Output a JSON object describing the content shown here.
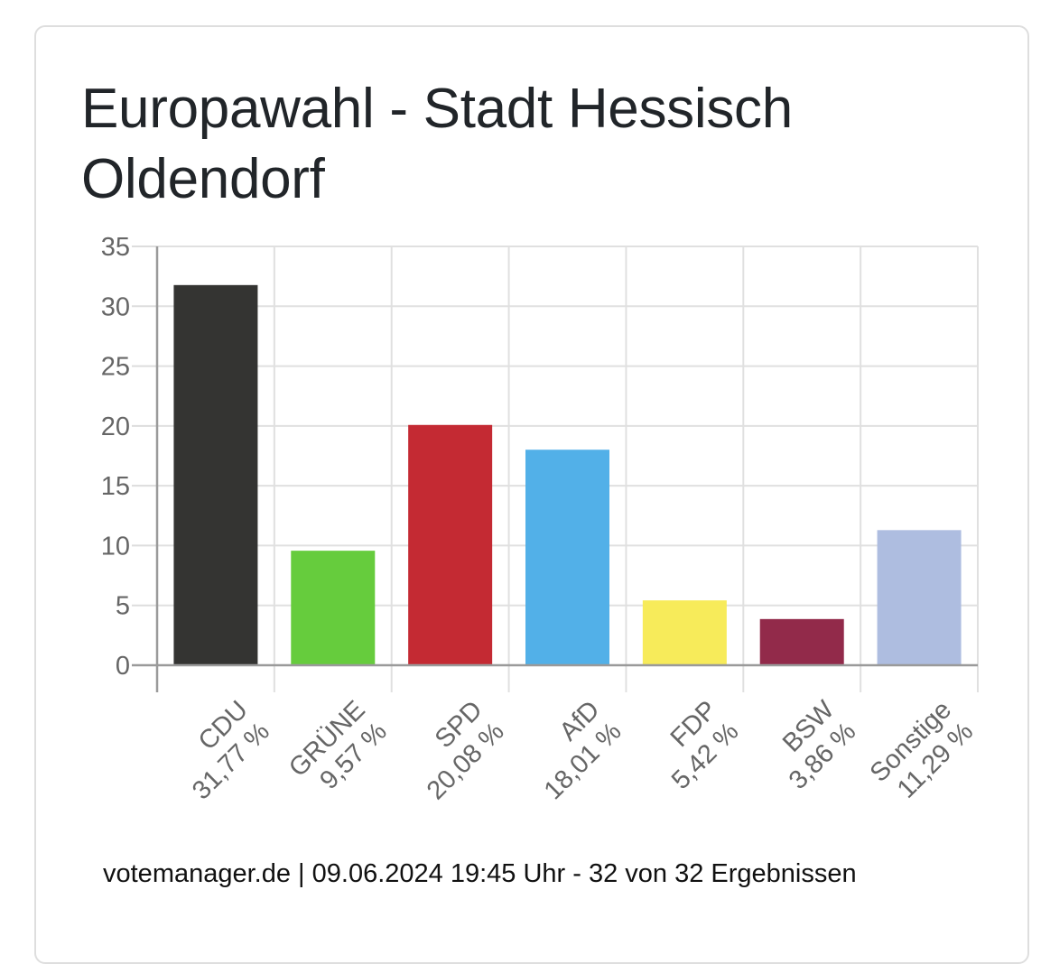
{
  "title": "Europawahl - Stadt Hessisch Oldendorf",
  "footer": "votemanager.de | 09.06.2024 19:45 Uhr - 32 von 32 Ergebnissen",
  "chart_data": {
    "type": "bar",
    "categories": [
      "CDU",
      "GRÜNE",
      "SPD",
      "AfD",
      "FDP",
      "BSW",
      "Sonstige"
    ],
    "category_labels": [
      [
        "CDU",
        "31,77 %"
      ],
      [
        "GRÜNE",
        "9,57 %"
      ],
      [
        "SPD",
        "20,08 %"
      ],
      [
        "AfD",
        "18,01 %"
      ],
      [
        "FDP",
        "5,42 %"
      ],
      [
        "BSW",
        "3,86 %"
      ],
      [
        "Sonstige",
        "11,29 %"
      ]
    ],
    "values": [
      31.77,
      9.57,
      20.08,
      18.01,
      5.42,
      3.86,
      11.29
    ],
    "colors": [
      "#343432",
      "#66cc3d",
      "#c42a33",
      "#52b0e8",
      "#f7eb5a",
      "#922a4a",
      "#aebde0"
    ],
    "ylim": [
      0,
      35
    ],
    "yticks": [
      "0",
      "5",
      "10",
      "15",
      "20",
      "25",
      "30",
      "35"
    ],
    "grid": true,
    "legend": "none",
    "xlabel": "",
    "ylabel": ""
  }
}
